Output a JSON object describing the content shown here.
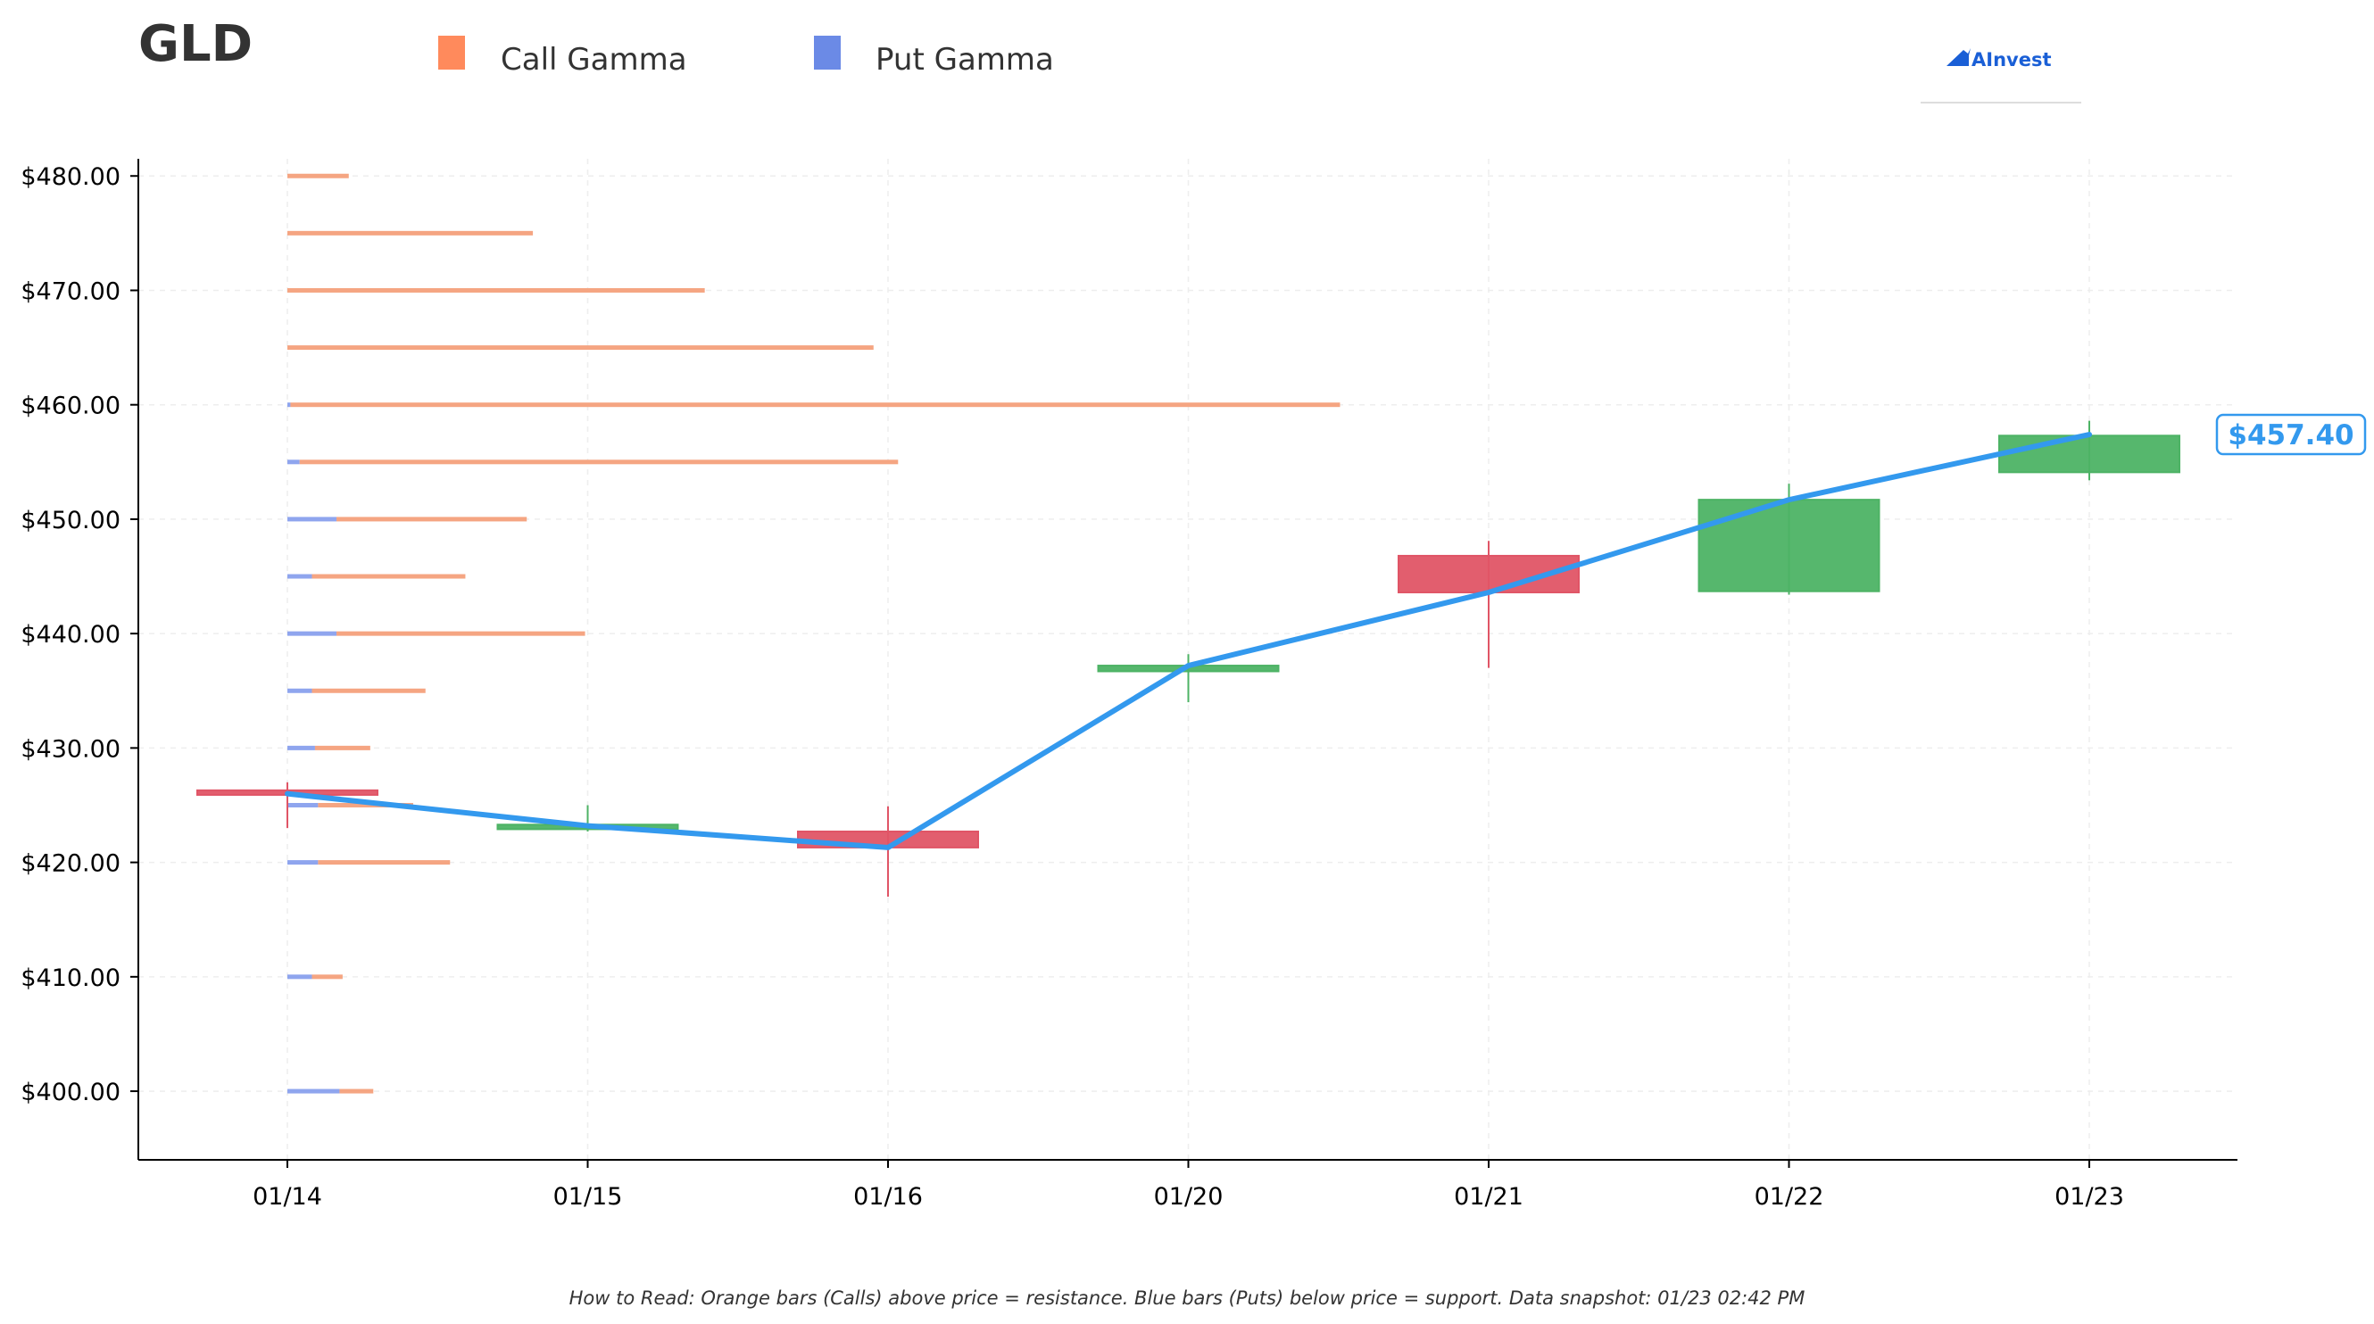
{
  "header": {
    "ticker": "GLD",
    "logo_text": "AInvest"
  },
  "legend": {
    "items": [
      {
        "label": "Call Gamma",
        "color": "#ff8a5c"
      },
      {
        "label": "Put Gamma",
        "color": "#6b8ae6"
      }
    ]
  },
  "footnote": "How to Read: Orange bars (Calls) above price = resistance. Blue bars (Puts) below price = support. Data snapshot: 01/23 02:42 PM",
  "colors": {
    "call": "#f5a582",
    "put": "#8fa5ee",
    "up": "#4db365",
    "down": "#e05566",
    "price_line": "#3399ee",
    "grid": "#eeeeee",
    "axis": "#000000"
  },
  "chart_data": {
    "type": "candlestick",
    "x_categories": [
      "01/14",
      "01/15",
      "01/16",
      "01/20",
      "01/21",
      "01/22",
      "01/23"
    ],
    "y_ticks": [
      "$400.00",
      "$410.00",
      "$420.00",
      "$430.00",
      "$440.00",
      "$450.00",
      "$460.00",
      "$470.00",
      "$480.00"
    ],
    "y_tick_values": [
      400,
      410,
      420,
      430,
      440,
      450,
      460,
      470,
      480
    ],
    "ylim": [
      394,
      481.5
    ],
    "grid": true,
    "candles": [
      {
        "date": "01/14",
        "open": 426.3,
        "close": 425.9,
        "high": 427.0,
        "low": 423.0
      },
      {
        "date": "01/15",
        "open": 422.9,
        "close": 423.3,
        "high": 425.0,
        "low": 422.7
      },
      {
        "date": "01/16",
        "open": 422.7,
        "close": 421.3,
        "high": 424.9,
        "low": 417.0
      },
      {
        "date": "01/20",
        "open": 436.7,
        "close": 437.2,
        "high": 438.2,
        "low": 434.0
      },
      {
        "date": "01/21",
        "open": 446.8,
        "close": 443.6,
        "high": 448.1,
        "low": 437.0
      },
      {
        "date": "01/22",
        "open": 443.7,
        "close": 451.7,
        "high": 453.1,
        "low": 443.4
      },
      {
        "date": "01/23",
        "open": 454.1,
        "close": 457.3,
        "high": 458.6,
        "low": 453.4
      }
    ],
    "price_line": {
      "points": [
        {
          "date": "01/14",
          "price": 426.0
        },
        {
          "date": "01/15",
          "price": 423.2
        },
        {
          "date": "01/16",
          "price": 421.3
        },
        {
          "date": "01/20",
          "price": 437.2
        },
        {
          "date": "01/21",
          "price": 443.6
        },
        {
          "date": "01/22",
          "price": 451.7
        },
        {
          "date": "01/23",
          "price": 457.4
        }
      ],
      "last_label": "$457.40"
    },
    "gamma_bars": [
      {
        "strike": 400,
        "put": 0.17,
        "call": 0.11
      },
      {
        "strike": 410,
        "put": 0.08,
        "call": 0.1
      },
      {
        "strike": 420,
        "put": 0.1,
        "call": 0.43
      },
      {
        "strike": 425,
        "put": 0.1,
        "call": 0.31
      },
      {
        "strike": 430,
        "put": 0.09,
        "call": 0.18
      },
      {
        "strike": 435,
        "put": 0.08,
        "call": 0.37
      },
      {
        "strike": 440,
        "put": 0.16,
        "call": 0.81
      },
      {
        "strike": 445,
        "put": 0.08,
        "call": 0.5
      },
      {
        "strike": 450,
        "put": 0.16,
        "call": 0.62
      },
      {
        "strike": 455,
        "put": 0.04,
        "call": 1.95
      },
      {
        "strike": 460,
        "put": 0.01,
        "call": 3.42
      },
      {
        "strike": 465,
        "put": 0.0,
        "call": 1.91
      },
      {
        "strike": 470,
        "put": 0.0,
        "call": 1.36
      },
      {
        "strike": 475,
        "put": 0.0,
        "call": 0.8
      },
      {
        "strike": 480,
        "put": 0.0,
        "call": 0.2
      }
    ],
    "gamma_scale_max": 3.42
  }
}
